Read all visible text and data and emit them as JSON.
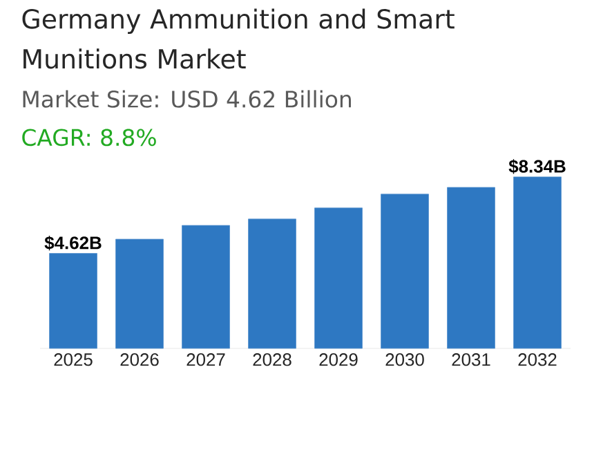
{
  "chart_data": {
    "type": "bar",
    "title": "Germany Ammunition and Smart Munitions Market",
    "subtitle": "Market Size: USD 4.62 Billion",
    "annotations": [
      "CAGR: 8.8%"
    ],
    "categories": [
      "2025",
      "2026",
      "2027",
      "2028",
      "2029",
      "2030",
      "2031",
      "2032"
    ],
    "values": [
      4.62,
      5.31,
      5.98,
      6.29,
      6.83,
      7.5,
      7.83,
      8.34
    ],
    "value_labels": [
      "$4.62B",
      null,
      null,
      null,
      null,
      null,
      null,
      "$8.34B"
    ],
    "color": "#2e78c2",
    "tick_labels": "x"
  }
}
